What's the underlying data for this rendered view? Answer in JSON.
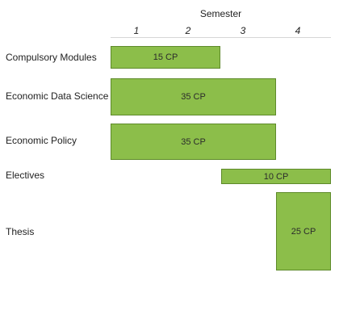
{
  "header": {
    "title": "Semester",
    "semesters": [
      "1",
      "2",
      "3",
      "4"
    ]
  },
  "colors": {
    "block_fill": "#8cbe4a",
    "block_border": "#5e8a2a",
    "grid_line": "#d6d6d6"
  },
  "rows": [
    {
      "label": "Compulsory Modules",
      "credits": "15 CP",
      "start_semester": 1,
      "end_semester": 2
    },
    {
      "label": "Economic Data Science",
      "credits": "35 CP",
      "start_semester": 1,
      "end_semester": 3
    },
    {
      "label": "Economic Policy",
      "credits": "35 CP",
      "start_semester": 1,
      "end_semester": 3
    },
    {
      "label": "Electives",
      "credits": "10 CP",
      "start_semester": 3,
      "end_semester": 4
    },
    {
      "label": "Thesis",
      "credits": "25 CP",
      "start_semester": 4,
      "end_semester": 4
    }
  ]
}
